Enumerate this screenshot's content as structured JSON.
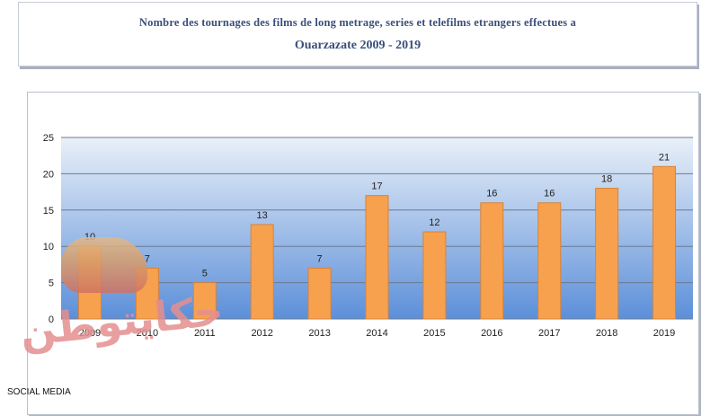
{
  "header": {
    "title_line1": "Nombre des tournages des films de long metrage, series et telefilms etrangers effectues a",
    "title_line2": "Ouarzazate 2009 - 2019"
  },
  "footer": {
    "label": "SOCIAL MEDIA"
  },
  "watermark": {
    "text": "حكايتوطن"
  },
  "colors": {
    "bar": "#f7a14f",
    "bar_edge": "#d7833a",
    "plot_top": "#e9f0f8",
    "plot_bottom": "#5c8fd9",
    "grid": "#6b7a90",
    "title": "#3a4f7a"
  },
  "chart_data": {
    "type": "bar",
    "title": "Nombre des tournages des films de long metrage, series et telefilms etrangers effectues a Ouarzazate 2009 - 2019",
    "categories": [
      "2009",
      "2010",
      "2011",
      "2012",
      "2013",
      "2014",
      "2015",
      "2016",
      "2017",
      "2018",
      "2019"
    ],
    "values": [
      10,
      7,
      5,
      13,
      7,
      17,
      12,
      16,
      16,
      18,
      21
    ],
    "ylim": [
      0,
      25
    ],
    "yticks": [
      0,
      5,
      10,
      15,
      20,
      25
    ],
    "grid": true,
    "data_labels": true,
    "legend": "none"
  }
}
